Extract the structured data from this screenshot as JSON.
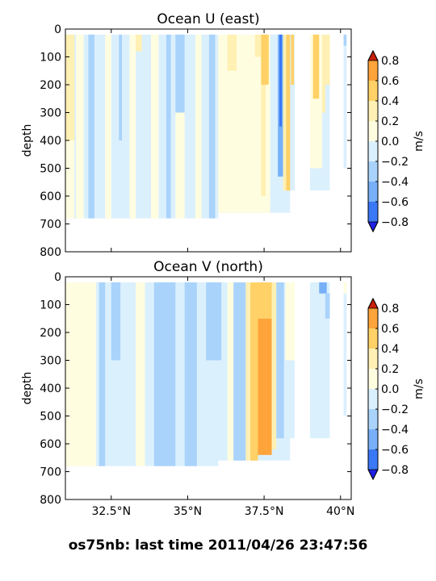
{
  "figure": {
    "footer": "os75nb: last time 2011/04/26 23:47:56"
  },
  "palette": {
    "levels": [
      -0.8,
      -0.6,
      -0.4,
      -0.2,
      0.0,
      0.2,
      0.4,
      0.6,
      0.8
    ],
    "fills": [
      "#1f1fe6",
      "#3a78f5",
      "#77b0f8",
      "#a9d3fb",
      "#dbf0fd",
      "#fffde0",
      "#fff0b3",
      "#ffd166",
      "#fea43a",
      "#f55a13",
      "#c8200a"
    ],
    "under_color": "#1f1fe6",
    "over_color": "#c8200a"
  },
  "chart_data": [
    {
      "type": "heatmap",
      "title": "Ocean U (east)",
      "ylabel": "depth",
      "xlabel": "",
      "xlim": [
        31.0,
        40.35
      ],
      "ylim": [
        800,
        0
      ],
      "x_ticks": [
        32.5,
        35,
        37.5,
        40
      ],
      "x_tick_labels": [
        "32.5°N",
        "35°N",
        "37.5°N",
        "40°N"
      ],
      "y_ticks": [
        0,
        100,
        200,
        300,
        400,
        500,
        600,
        700,
        800
      ],
      "y_tick_labels": [
        "0",
        "100",
        "200",
        "300",
        "400",
        "500",
        "600",
        "700",
        "800"
      ],
      "colorbar": {
        "label": "m/s",
        "ticks": [
          "0.8",
          "0.6",
          "0.4",
          "0.2",
          "0.0",
          "−0.2",
          "−0.4",
          "−0.6",
          "−0.8"
        ]
      },
      "background_value": -0.1,
      "bands": [
        {
          "x0": 31.0,
          "x1": 31.3,
          "d0": 20,
          "d1": 400,
          "v": 0.25
        },
        {
          "x0": 31.0,
          "x1": 31.3,
          "d0": 400,
          "d1": 680,
          "v": 0.1
        },
        {
          "x0": 31.35,
          "x1": 31.6,
          "d0": 20,
          "d1": 680,
          "v": 0.1
        },
        {
          "x0": 31.75,
          "x1": 31.95,
          "d0": 20,
          "d1": 680,
          "v": -0.3
        },
        {
          "x0": 32.3,
          "x1": 32.5,
          "d0": 20,
          "d1": 680,
          "v": 0.1
        },
        {
          "x0": 32.75,
          "x1": 32.85,
          "d0": 20,
          "d1": 400,
          "v": -0.3
        },
        {
          "x0": 33.1,
          "x1": 33.3,
          "d0": 20,
          "d1": 680,
          "v": 0.1
        },
        {
          "x0": 33.3,
          "x1": 33.5,
          "d0": 20,
          "d1": 80,
          "v": 0.25
        },
        {
          "x0": 33.8,
          "x1": 34.05,
          "d0": 20,
          "d1": 680,
          "v": 0.1
        },
        {
          "x0": 34.6,
          "x1": 34.9,
          "d0": 20,
          "d1": 300,
          "v": -0.3
        },
        {
          "x0": 34.6,
          "x1": 34.9,
          "d0": 300,
          "d1": 680,
          "v": 0.1
        },
        {
          "x0": 34.3,
          "x1": 34.45,
          "d0": 20,
          "d1": 680,
          "v": -0.3
        },
        {
          "x0": 35.25,
          "x1": 35.45,
          "d0": 20,
          "d1": 680,
          "v": 0.1
        },
        {
          "x0": 35.7,
          "x1": 35.9,
          "d0": 20,
          "d1": 680,
          "v": -0.3
        },
        {
          "x0": 36.0,
          "x1": 37.7,
          "d0": 20,
          "d1": 660,
          "v": 0.1
        },
        {
          "x0": 36.3,
          "x1": 36.6,
          "d0": 20,
          "d1": 150,
          "v": 0.25
        },
        {
          "x0": 37.2,
          "x1": 37.4,
          "d0": 20,
          "d1": 100,
          "v": 0.25
        },
        {
          "x0": 37.4,
          "x1": 37.65,
          "d0": 20,
          "d1": 200,
          "v": 0.45
        },
        {
          "x0": 37.4,
          "x1": 37.55,
          "d0": 200,
          "d1": 600,
          "v": 0.25
        },
        {
          "x0": 37.75,
          "x1": 37.95,
          "d0": 20,
          "d1": 560,
          "v": -0.1
        },
        {
          "x0": 37.95,
          "x1": 38.12,
          "d0": 20,
          "d1": 530,
          "v": -0.5
        },
        {
          "x0": 38.0,
          "x1": 38.08,
          "d0": 20,
          "d1": 350,
          "v": -0.75
        },
        {
          "x0": 38.12,
          "x1": 38.22,
          "d0": 20,
          "d1": 580,
          "v": 0.25
        },
        {
          "x0": 38.22,
          "x1": 38.35,
          "d0": 20,
          "d1": 580,
          "v": 0.45
        },
        {
          "x0": 38.38,
          "x1": 38.48,
          "d0": 20,
          "d1": 200,
          "v": 0.55
        },
        {
          "x0": 39.0,
          "x1": 39.4,
          "d0": 20,
          "d1": 500,
          "v": 0.1
        },
        {
          "x0": 39.1,
          "x1": 39.3,
          "d0": 20,
          "d1": 250,
          "v": 0.45
        },
        {
          "x0": 39.4,
          "x1": 39.5,
          "d0": 20,
          "d1": 300,
          "v": 0.25
        },
        {
          "x0": 39.5,
          "x1": 39.65,
          "d0": 20,
          "d1": 200,
          "v": 0.3
        },
        {
          "x0": 40.1,
          "x1": 40.2,
          "d0": 20,
          "d1": 60,
          "v": -0.3
        }
      ],
      "gaps": [
        {
          "x0": 38.5,
          "x1": 39.0,
          "d0": 0,
          "d1": 800
        },
        {
          "x0": 39.65,
          "x1": 40.1,
          "d0": 0,
          "d1": 800
        },
        {
          "x0": 40.2,
          "x1": 40.35,
          "d0": 0,
          "d1": 800
        }
      ]
    },
    {
      "type": "heatmap",
      "title": "Ocean V (north)",
      "ylabel": "depth",
      "xlabel": "",
      "xlim": [
        31.0,
        40.35
      ],
      "ylim": [
        800,
        0
      ],
      "x_ticks": [
        32.5,
        35,
        37.5,
        40
      ],
      "x_tick_labels": [
        "32.5°N",
        "35°N",
        "37.5°N",
        "40°N"
      ],
      "y_ticks": [
        0,
        100,
        200,
        300,
        400,
        500,
        600,
        700,
        800
      ],
      "y_tick_labels": [
        "0",
        "100",
        "200",
        "300",
        "400",
        "500",
        "600",
        "700",
        "800"
      ],
      "colorbar": {
        "label": "m/s",
        "ticks": [
          "0.8",
          "0.6",
          "0.4",
          "0.2",
          "0.0",
          "−0.2",
          "−0.4",
          "−0.6",
          "−0.8"
        ]
      },
      "background_value": -0.1,
      "bands": [
        {
          "x0": 31.0,
          "x1": 32.0,
          "d0": 20,
          "d1": 680,
          "v": 0.1
        },
        {
          "x0": 32.1,
          "x1": 32.3,
          "d0": 20,
          "d1": 680,
          "v": -0.3
        },
        {
          "x0": 32.5,
          "x1": 32.8,
          "d0": 20,
          "d1": 300,
          "v": -0.3
        },
        {
          "x0": 33.3,
          "x1": 33.6,
          "d0": 20,
          "d1": 680,
          "v": 0.1
        },
        {
          "x0": 33.9,
          "x1": 34.6,
          "d0": 20,
          "d1": 680,
          "v": -0.3
        },
        {
          "x0": 34.9,
          "x1": 35.3,
          "d0": 20,
          "d1": 680,
          "v": -0.3
        },
        {
          "x0": 35.6,
          "x1": 36.1,
          "d0": 20,
          "d1": 300,
          "v": -0.3
        },
        {
          "x0": 36.3,
          "x1": 36.5,
          "d0": 20,
          "d1": 660,
          "v": 0.1
        },
        {
          "x0": 36.5,
          "x1": 36.9,
          "d0": 20,
          "d1": 660,
          "v": -0.3
        },
        {
          "x0": 36.9,
          "x1": 37.05,
          "d0": 20,
          "d1": 660,
          "v": 0.25
        },
        {
          "x0": 37.05,
          "x1": 37.3,
          "d0": 20,
          "d1": 660,
          "v": 0.45
        },
        {
          "x0": 37.3,
          "x1": 37.75,
          "d0": 20,
          "d1": 150,
          "v": 0.45
        },
        {
          "x0": 37.4,
          "x1": 37.55,
          "d0": 20,
          "d1": 120,
          "v": 0.55
        },
        {
          "x0": 37.3,
          "x1": 37.75,
          "d0": 150,
          "d1": 640,
          "v": 0.6
        },
        {
          "x0": 37.75,
          "x1": 37.9,
          "d0": 20,
          "d1": 620,
          "v": 0.25
        },
        {
          "x0": 37.9,
          "x1": 38.15,
          "d0": 20,
          "d1": 580,
          "v": -0.3
        },
        {
          "x0": 38.2,
          "x1": 38.5,
          "d0": 20,
          "d1": 300,
          "v": 0.1
        },
        {
          "x0": 39.0,
          "x1": 39.3,
          "d0": 20,
          "d1": 500,
          "v": -0.1
        },
        {
          "x0": 39.3,
          "x1": 39.65,
          "d0": 20,
          "d1": 500,
          "v": -0.1
        },
        {
          "x0": 39.3,
          "x1": 39.55,
          "d0": 20,
          "d1": 60,
          "v": -0.5
        },
        {
          "x0": 39.5,
          "x1": 39.65,
          "d0": 60,
          "d1": 150,
          "v": -0.3
        },
        {
          "x0": 40.1,
          "x1": 40.2,
          "d0": 20,
          "d1": 60,
          "v": 0.1
        }
      ],
      "gaps": [
        {
          "x0": 38.5,
          "x1": 39.0,
          "d0": 0,
          "d1": 800
        },
        {
          "x0": 39.65,
          "x1": 40.1,
          "d0": 0,
          "d1": 800
        },
        {
          "x0": 40.2,
          "x1": 40.35,
          "d0": 0,
          "d1": 800
        }
      ]
    }
  ]
}
